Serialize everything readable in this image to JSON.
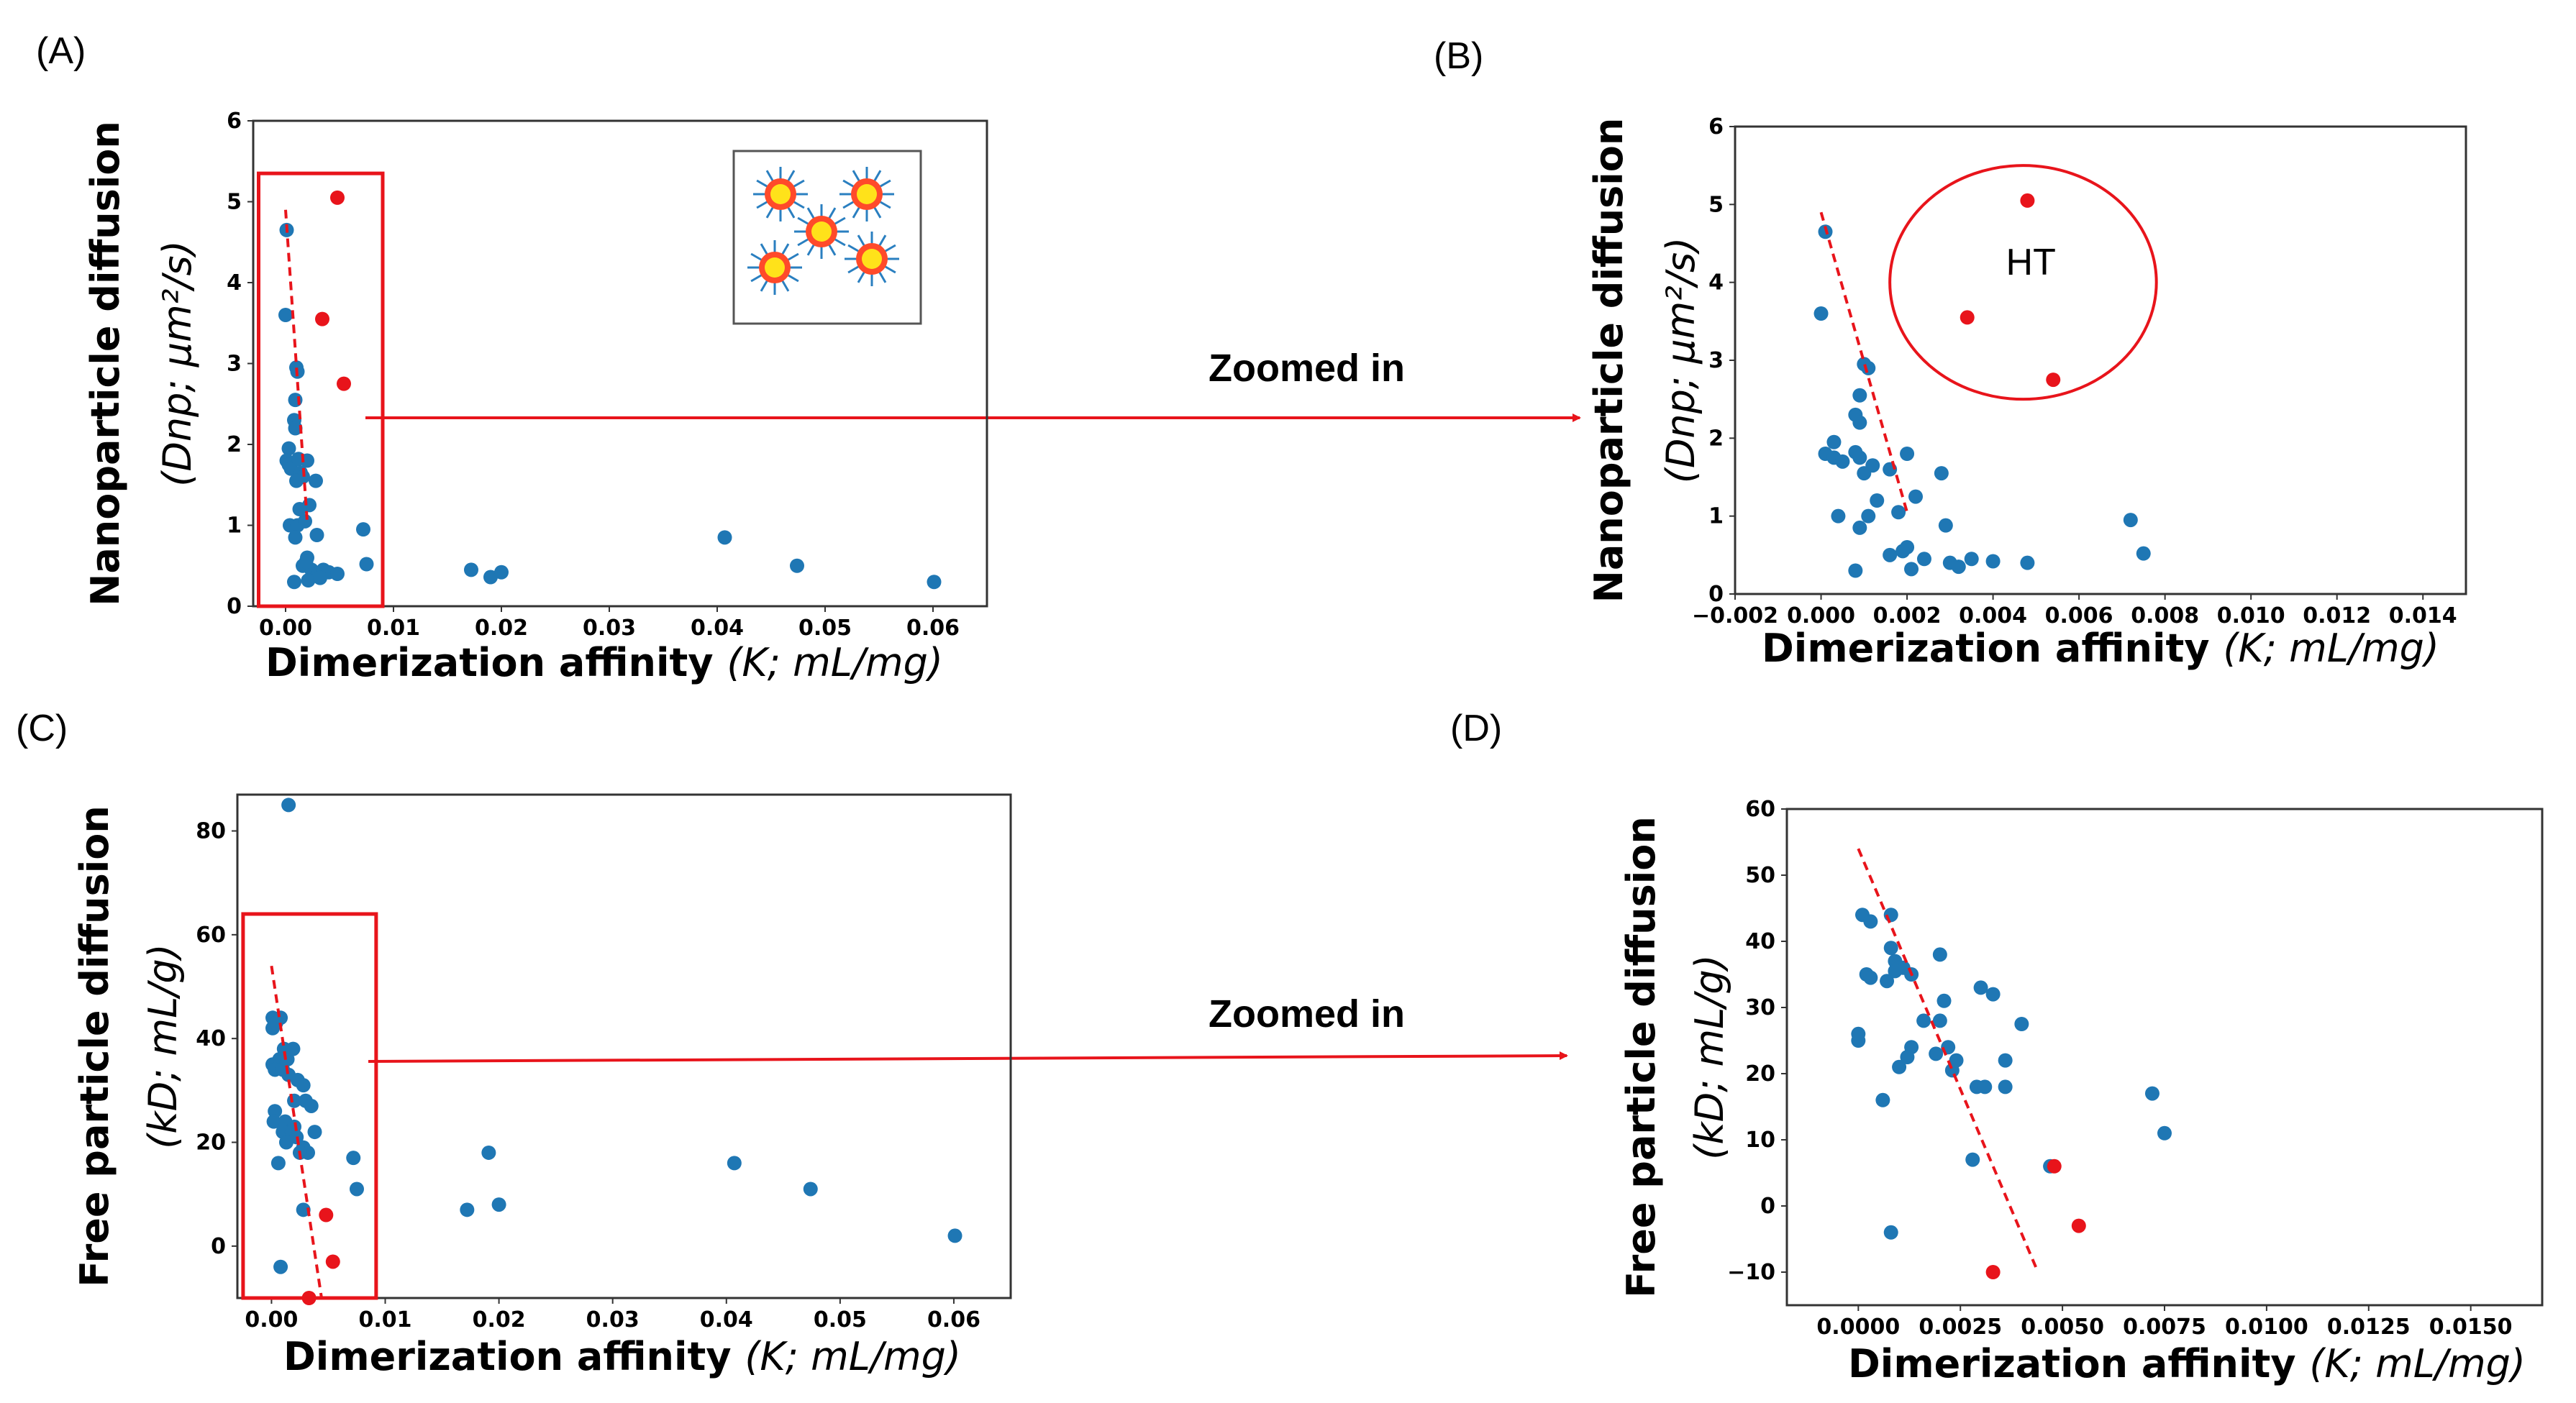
{
  "figure": {
    "zoom_label": "Zoomed in",
    "x_axis_label": "Dimerization affinity",
    "x_axis_symbol": "(K; mL/mg)",
    "colors": {
      "blue": "#1f77b4",
      "red": "#e8141b",
      "fit": "#e8141b"
    }
  },
  "chart_data": [
    {
      "panel_label": "(A)",
      "type": "scatter",
      "ylabel_main": "Nanoparticle diffusion",
      "ylabel_sym": "(Dnp; μm²/s)",
      "xlim": [
        -0.003,
        0.065
      ],
      "ylim": [
        0,
        6
      ],
      "xticks": [
        0.0,
        0.01,
        0.02,
        0.03,
        0.04,
        0.05,
        0.06
      ],
      "xtick_labels": [
        "0.00",
        "0.01",
        "0.02",
        "0.03",
        "0.04",
        "0.05",
        "0.06"
      ],
      "yticks": [
        0,
        1,
        2,
        3,
        4,
        5,
        6
      ],
      "ytick_labels": [
        "0",
        "1",
        "2",
        "3",
        "4",
        "5",
        "6"
      ],
      "series": [
        {
          "name": "blue",
          "points": [
            [
              0.0001,
              4.65
            ],
            [
              0.0,
              3.6
            ],
            [
              0.001,
              2.95
            ],
            [
              0.0011,
              2.9
            ],
            [
              0.0009,
              2.55
            ],
            [
              0.0008,
              2.3
            ],
            [
              0.0009,
              2.2
            ],
            [
              0.0003,
              1.95
            ],
            [
              0.0001,
              1.8
            ],
            [
              0.0003,
              1.75
            ],
            [
              0.0005,
              1.7
            ],
            [
              0.0012,
              1.82
            ],
            [
              0.0014,
              1.65
            ],
            [
              0.002,
              1.8
            ],
            [
              0.0016,
              1.6
            ],
            [
              0.001,
              1.55
            ],
            [
              0.0022,
              1.25
            ],
            [
              0.0028,
              1.55
            ],
            [
              0.0013,
              1.2
            ],
            [
              0.0004,
              1.0
            ],
            [
              0.0011,
              1.0
            ],
            [
              0.0018,
              1.05
            ],
            [
              0.0009,
              0.85
            ],
            [
              0.0029,
              0.88
            ],
            [
              0.002,
              0.6
            ],
            [
              0.0016,
              0.5
            ],
            [
              0.0024,
              0.45
            ],
            [
              0.0019,
              0.55
            ],
            [
              0.003,
              0.4
            ],
            [
              0.0035,
              0.45
            ],
            [
              0.004,
              0.42
            ],
            [
              0.0048,
              0.4
            ],
            [
              0.0008,
              0.3
            ],
            [
              0.0021,
              0.32
            ],
            [
              0.0032,
              0.35
            ],
            [
              0.0072,
              0.95
            ],
            [
              0.0075,
              0.52
            ],
            [
              0.0172,
              0.45
            ],
            [
              0.019,
              0.36
            ],
            [
              0.02,
              0.42
            ],
            [
              0.0407,
              0.85
            ],
            [
              0.0474,
              0.5
            ],
            [
              0.0601,
              0.3
            ]
          ]
        },
        {
          "name": "red",
          "points": [
            [
              0.0048,
              5.05
            ],
            [
              0.0034,
              3.55
            ],
            [
              0.0054,
              2.75
            ]
          ]
        }
      ],
      "fit_line": [
        [
          0.0,
          4.9
        ],
        [
          0.002,
          1.05
        ]
      ],
      "highlight_box": {
        "x": [
          -0.0025,
          0.009
        ],
        "y": [
          -0.5,
          5.35
        ]
      },
      "inset": true
    },
    {
      "panel_label": "(B)",
      "type": "scatter",
      "ylabel_main": "Nanoparticle diffusion",
      "ylabel_sym": "(Dnp; μm²/s)",
      "xlim": [
        -0.002,
        0.015
      ],
      "ylim": [
        0,
        6
      ],
      "xticks": [
        -0.002,
        0.0,
        0.002,
        0.004,
        0.006,
        0.008,
        0.01,
        0.012,
        0.014
      ],
      "xtick_labels": [
        "−0.002",
        "0.000",
        "0.002",
        "0.004",
        "0.006",
        "0.008",
        "0.010",
        "0.012",
        "0.014"
      ],
      "yticks": [
        0,
        1,
        2,
        3,
        4,
        5,
        6
      ],
      "ytick_labels": [
        "0",
        "1",
        "2",
        "3",
        "4",
        "5",
        "6"
      ],
      "series": [
        {
          "name": "blue",
          "points": [
            [
              0.0001,
              4.65
            ],
            [
              0.0,
              3.6
            ],
            [
              0.001,
              2.95
            ],
            [
              0.0011,
              2.9
            ],
            [
              0.0009,
              2.55
            ],
            [
              0.0008,
              2.3
            ],
            [
              0.0009,
              2.2
            ],
            [
              0.0003,
              1.95
            ],
            [
              0.0001,
              1.8
            ],
            [
              0.0003,
              1.75
            ],
            [
              0.0005,
              1.7
            ],
            [
              0.0008,
              1.82
            ],
            [
              0.0009,
              1.75
            ],
            [
              0.0012,
              1.65
            ],
            [
              0.002,
              1.8
            ],
            [
              0.0016,
              1.6
            ],
            [
              0.001,
              1.55
            ],
            [
              0.0022,
              1.25
            ],
            [
              0.0028,
              1.55
            ],
            [
              0.0013,
              1.2
            ],
            [
              0.0004,
              1.0
            ],
            [
              0.0011,
              1.0
            ],
            [
              0.0018,
              1.05
            ],
            [
              0.0009,
              0.85
            ],
            [
              0.0029,
              0.88
            ],
            [
              0.002,
              0.6
            ],
            [
              0.0016,
              0.5
            ],
            [
              0.0024,
              0.45
            ],
            [
              0.0019,
              0.55
            ],
            [
              0.003,
              0.4
            ],
            [
              0.0035,
              0.45
            ],
            [
              0.004,
              0.42
            ],
            [
              0.0048,
              0.4
            ],
            [
              0.0008,
              0.3
            ],
            [
              0.0021,
              0.32
            ],
            [
              0.0032,
              0.35
            ],
            [
              0.0072,
              0.95
            ],
            [
              0.0075,
              0.52
            ]
          ]
        },
        {
          "name": "red",
          "points": [
            [
              0.0048,
              5.05
            ],
            [
              0.0034,
              3.55
            ],
            [
              0.0054,
              2.75
            ]
          ]
        }
      ],
      "fit_line": [
        [
          0.0,
          4.9
        ],
        [
          0.002,
          1.05
        ]
      ],
      "ellipse": {
        "cx": 0.0047,
        "cy": 4.0,
        "rx": 0.0031,
        "ry": 1.5,
        "label": "HT"
      }
    },
    {
      "panel_label": "(C)",
      "type": "scatter",
      "ylabel_main": "Free particle diffusion",
      "ylabel_sym": "(kD; mL/g)",
      "xlim": [
        -0.003,
        0.065
      ],
      "ylim": [
        -10,
        87
      ],
      "xticks": [
        0.0,
        0.01,
        0.02,
        0.03,
        0.04,
        0.05,
        0.06
      ],
      "xtick_labels": [
        "0.00",
        "0.01",
        "0.02",
        "0.03",
        "0.04",
        "0.05",
        "0.06"
      ],
      "yticks": [
        0,
        20,
        40,
        60,
        80
      ],
      "ytick_labels": [
        "0",
        "20",
        "40",
        "60",
        "80"
      ],
      "series": [
        {
          "name": "blue",
          "points": [
            [
              0.0015,
              85
            ],
            [
              0.0001,
              44
            ],
            [
              0.0008,
              44
            ],
            [
              0.0001,
              42
            ],
            [
              0.0004,
              43
            ],
            [
              0.0011,
              38
            ],
            [
              0.0007,
              36
            ],
            [
              0.0001,
              35
            ],
            [
              0.0003,
              34
            ],
            [
              0.001,
              34
            ],
            [
              0.0014,
              36
            ],
            [
              0.0019,
              38
            ],
            [
              0.0015,
              33
            ],
            [
              0.0023,
              32
            ],
            [
              0.0028,
              31
            ],
            [
              0.0003,
              26
            ],
            [
              0.0002,
              24
            ],
            [
              0.0012,
              24
            ],
            [
              0.001,
              22
            ],
            [
              0.002,
              23
            ],
            [
              0.002,
              28
            ],
            [
              0.003,
              28
            ],
            [
              0.0035,
              27
            ],
            [
              0.0018,
              22
            ],
            [
              0.0022,
              21
            ],
            [
              0.0028,
              19
            ],
            [
              0.0032,
              18
            ],
            [
              0.0038,
              22
            ],
            [
              0.0025,
              18
            ],
            [
              0.0006,
              16
            ],
            [
              0.0013,
              20
            ],
            [
              0.0028,
              7
            ],
            [
              0.0008,
              -4
            ],
            [
              0.0072,
              17
            ],
            [
              0.0075,
              11
            ],
            [
              0.0172,
              7
            ],
            [
              0.0191,
              18
            ],
            [
              0.02,
              8
            ],
            [
              0.0407,
              16
            ],
            [
              0.0474,
              11
            ],
            [
              0.0601,
              2
            ]
          ]
        },
        {
          "name": "red",
          "points": [
            [
              0.0048,
              6
            ],
            [
              0.0054,
              -3
            ],
            [
              0.0033,
              -10
            ]
          ]
        }
      ],
      "fit_line": [
        [
          0.0,
          54
        ],
        [
          0.0044,
          -10
        ]
      ],
      "highlight_box": {
        "x": [
          -0.0025,
          0.0092
        ],
        "y": [
          -10,
          64
        ]
      }
    },
    {
      "panel_label": "(D)",
      "type": "scatter",
      "ylabel_main": "Free particle diffusion",
      "ylabel_sym": "(kD; mL/g)",
      "xlim": [
        -0.00175,
        0.01675
      ],
      "ylim": [
        -15,
        60
      ],
      "xticks": [
        0.0,
        0.0025,
        0.005,
        0.0075,
        0.01,
        0.0125,
        0.015
      ],
      "xtick_labels": [
        "0.0000",
        "0.0025",
        "0.0050",
        "0.0075",
        "0.0100",
        "0.0125",
        "0.0150"
      ],
      "yticks": [
        -10,
        0,
        10,
        20,
        30,
        40,
        50,
        60
      ],
      "ytick_labels": [
        "−10",
        "0",
        "10",
        "20",
        "30",
        "40",
        "50",
        "60"
      ],
      "series": [
        {
          "name": "blue",
          "points": [
            [
              0.0001,
              44
            ],
            [
              0.0008,
              44
            ],
            [
              0.0003,
              43
            ],
            [
              0.0002,
              35
            ],
            [
              0.0003,
              34.5
            ],
            [
              0.0008,
              39
            ],
            [
              0.0009,
              37
            ],
            [
              0.0011,
              36
            ],
            [
              0.0013,
              35
            ],
            [
              0.0007,
              34
            ],
            [
              0.0009,
              35.5
            ],
            [
              0.002,
              38
            ],
            [
              0.0021,
              31
            ],
            [
              0.003,
              33
            ],
            [
              0.0033,
              32
            ],
            [
              0.004,
              27.5
            ],
            [
              0.0016,
              28
            ],
            [
              0.002,
              28
            ],
            [
              0.0022,
              24
            ],
            [
              0.0013,
              24
            ],
            [
              0.0012,
              22.5
            ],
            [
              0.001,
              21
            ],
            [
              0.0019,
              23
            ],
            [
              0.0023,
              20.5
            ],
            [
              0.0024,
              22
            ],
            [
              0.0,
              25
            ],
            [
              0.0,
              26
            ],
            [
              0.0036,
              22
            ],
            [
              0.0036,
              18
            ],
            [
              0.0029,
              18
            ],
            [
              0.0031,
              18
            ],
            [
              0.0006,
              16
            ],
            [
              0.0028,
              7
            ],
            [
              0.0047,
              6
            ],
            [
              0.0008,
              -4
            ],
            [
              0.0072,
              17
            ],
            [
              0.0075,
              11
            ]
          ]
        },
        {
          "name": "red",
          "points": [
            [
              0.0048,
              6
            ],
            [
              0.0054,
              -3
            ],
            [
              0.0033,
              -10
            ]
          ]
        }
      ],
      "fit_line": [
        [
          0.0,
          54
        ],
        [
          0.0044,
          -10
        ]
      ]
    }
  ]
}
